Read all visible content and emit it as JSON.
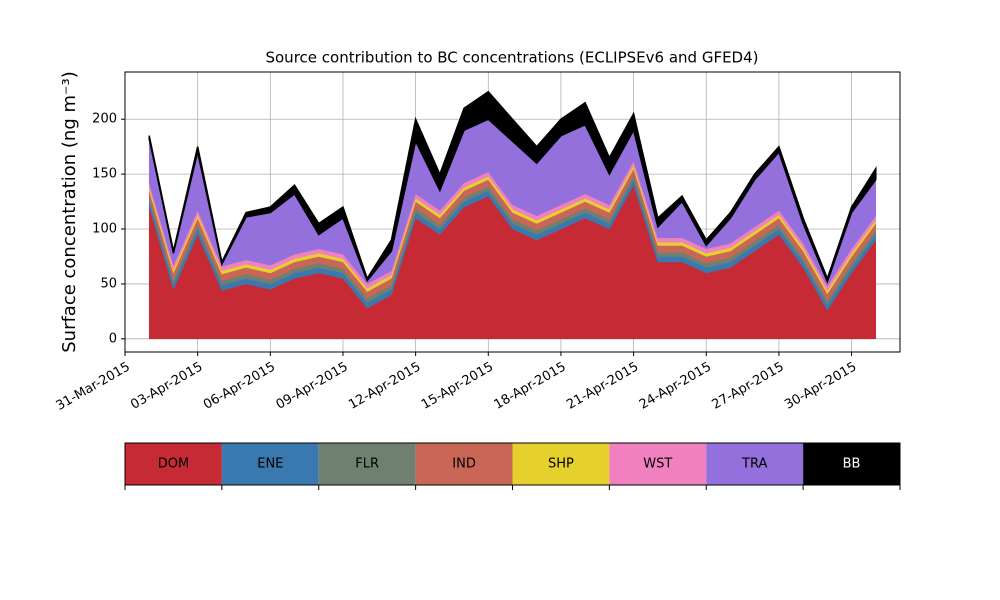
{
  "chart_data": {
    "type": "stacked_area",
    "title": "Source contribution to BC concentrations (ECLIPSEv6 and GFED4)",
    "y_label": "Surface concentration (ng m⁻³)",
    "x": [
      "2015-04-01",
      "2015-04-02",
      "2015-04-03",
      "2015-04-04",
      "2015-04-05",
      "2015-04-06",
      "2015-04-07",
      "2015-04-08",
      "2015-04-09",
      "2015-04-10",
      "2015-04-11",
      "2015-04-12",
      "2015-04-13",
      "2015-04-14",
      "2015-04-15",
      "2015-04-16",
      "2015-04-17",
      "2015-04-18",
      "2015-04-19",
      "2015-04-20",
      "2015-04-21",
      "2015-04-22",
      "2015-04-23",
      "2015-04-24",
      "2015-04-25",
      "2015-04-26",
      "2015-04-27",
      "2015-04-28",
      "2015-04-29",
      "2015-04-30",
      "2015-05-01"
    ],
    "series": [
      {
        "name": "DOM",
        "color": "#c52a35",
        "values": [
          120,
          45,
          95,
          44,
          50,
          45,
          55,
          60,
          55,
          28,
          40,
          110,
          95,
          120,
          130,
          100,
          90,
          100,
          110,
          100,
          140,
          70,
          70,
          60,
          65,
          80,
          95,
          65,
          26,
          60,
          90
        ]
      },
      {
        "name": "ENE",
        "color": "#3a78b0",
        "values": [
          5,
          5,
          5,
          5,
          5,
          5,
          5,
          5,
          5,
          5,
          5,
          5,
          5,
          5,
          5,
          5,
          5,
          5,
          5,
          5,
          5,
          5,
          5,
          5,
          5,
          5,
          5,
          5,
          5,
          5,
          5
        ]
      },
      {
        "name": "FLR",
        "color": "#6f8070",
        "values": [
          4,
          4,
          4,
          4,
          4,
          4,
          4,
          4,
          4,
          4,
          4,
          4,
          4,
          4,
          4,
          4,
          4,
          4,
          4,
          4,
          4,
          4,
          4,
          4,
          4,
          4,
          4,
          4,
          4,
          4,
          4
        ]
      },
      {
        "name": "IND",
        "color": "#c96656",
        "values": [
          6,
          6,
          6,
          6,
          6,
          6,
          6,
          6,
          6,
          6,
          6,
          6,
          6,
          6,
          6,
          6,
          6,
          6,
          6,
          6,
          6,
          6,
          6,
          6,
          6,
          6,
          6,
          6,
          6,
          6,
          6
        ]
      },
      {
        "name": "SHP",
        "color": "#e5d02e",
        "values": [
          3,
          3,
          3,
          3,
          3,
          3,
          3,
          3,
          3,
          3,
          3,
          3,
          3,
          3,
          3,
          3,
          3,
          3,
          3,
          3,
          3,
          3,
          3,
          3,
          3,
          3,
          3,
          3,
          3,
          3,
          3
        ]
      },
      {
        "name": "WST",
        "color": "#f080c0",
        "values": [
          4,
          4,
          4,
          4,
          4,
          4,
          4,
          4,
          4,
          4,
          4,
          4,
          4,
          4,
          4,
          4,
          4,
          4,
          4,
          4,
          4,
          4,
          4,
          4,
          4,
          4,
          4,
          4,
          4,
          4,
          4
        ]
      },
      {
        "name": "TRA",
        "color": "#9370db",
        "values": [
          40,
          11,
          53,
          2,
          39,
          48,
          55,
          13,
          33,
          3,
          18,
          48,
          18,
          48,
          48,
          58,
          48,
          63,
          63,
          28,
          28,
          10,
          33,
          3,
          23,
          43,
          53,
          18,
          4,
          33,
          33
        ]
      },
      {
        "name": "BB",
        "color": "#000000",
        "values": [
          3,
          2,
          5,
          2,
          4,
          5,
          8,
          10,
          10,
          2,
          10,
          20,
          15,
          20,
          25,
          20,
          15,
          15,
          20,
          15,
          15,
          8,
          5,
          5,
          5,
          5,
          5,
          5,
          3,
          5,
          10
        ]
      }
    ],
    "xlim": [
      "2015-03-31",
      "2015-05-02"
    ],
    "xticks": [
      {
        "value": "2015-03-31",
        "label": "31-Mar-2015"
      },
      {
        "value": "2015-04-03",
        "label": "03-Apr-2015"
      },
      {
        "value": "2015-04-06",
        "label": "06-Apr-2015"
      },
      {
        "value": "2015-04-09",
        "label": "09-Apr-2015"
      },
      {
        "value": "2015-04-12",
        "label": "12-Apr-2015"
      },
      {
        "value": "2015-04-15",
        "label": "15-Apr-2015"
      },
      {
        "value": "2015-04-18",
        "label": "18-Apr-2015"
      },
      {
        "value": "2015-04-21",
        "label": "21-Apr-2015"
      },
      {
        "value": "2015-04-24",
        "label": "24-Apr-2015"
      },
      {
        "value": "2015-04-27",
        "label": "27-Apr-2015"
      },
      {
        "value": "2015-04-30",
        "label": "30-Apr-2015"
      }
    ],
    "ylim": [
      -12,
      243
    ],
    "yticks": [
      0,
      50,
      100,
      150,
      200
    ],
    "grid": true
  }
}
